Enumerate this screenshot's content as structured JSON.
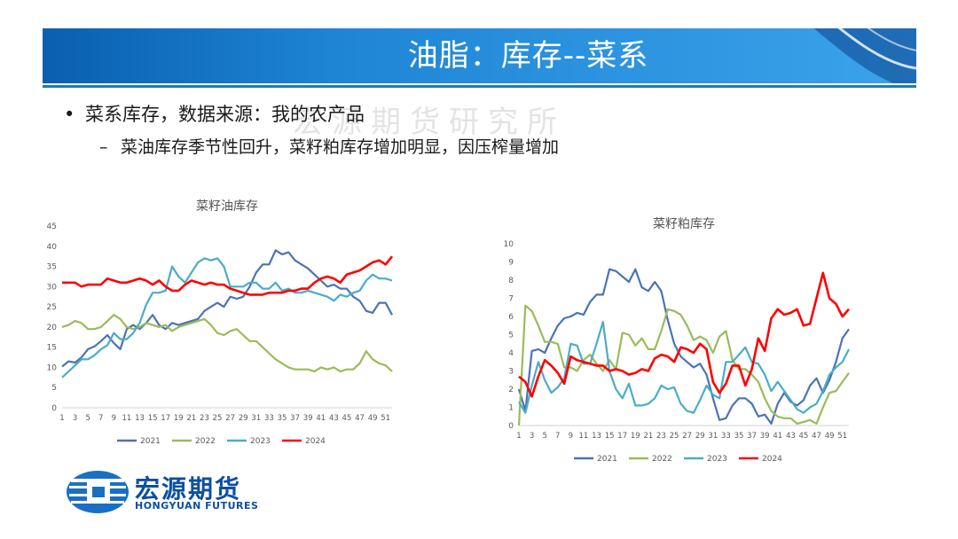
{
  "header": {
    "title": "油脂：库存--菜系"
  },
  "watermark": "宏源期货研究所",
  "bullets": {
    "level1": "菜系库存，数据来源：我的农产品",
    "level2": "菜油库存季节性回升，菜籽粕库存增加明显，因压榨量增加"
  },
  "logo": {
    "cn": "宏源期货",
    "en": "HONGYUAN FUTURES"
  },
  "colors": {
    "banner": "#1f86d6",
    "s2021": "#4a73b5",
    "s2022": "#9bbb59",
    "s2023": "#4bacc6",
    "s2024": "#ff0000"
  },
  "chart_data": [
    {
      "type": "line",
      "title": "菜籽油库存",
      "ylim": [
        0,
        45
      ],
      "yticks": [
        0,
        5,
        10,
        15,
        20,
        25,
        30,
        35,
        40,
        45
      ],
      "xlim": [
        1,
        52
      ],
      "xticks": [
        "1",
        "3",
        "5",
        "7",
        "9",
        "11",
        "13",
        "15",
        "17",
        "19",
        "21",
        "23",
        "25",
        "27",
        "29",
        "31",
        "33",
        "35",
        "37",
        "39",
        "41",
        "43",
        "45",
        "47",
        "49",
        "51"
      ],
      "legend": "bottom",
      "grid": false,
      "series": [
        {
          "name": "2021",
          "color": "#4a73b5",
          "values": [
            10.2,
            11.5,
            11.2,
            12.5,
            14.5,
            15.2,
            16.5,
            18.0,
            16.0,
            14.5,
            19.5,
            20.5,
            19.5,
            21.0,
            23.0,
            20.5,
            19.5,
            21.0,
            20.5,
            21.0,
            21.5,
            22.0,
            24.0,
            25.0,
            26.0,
            25.0,
            27.5,
            27.0,
            27.5,
            30.0,
            33.5,
            35.5,
            35.5,
            39.0,
            38.0,
            38.5,
            36.5,
            35.5,
            34.5,
            33.0,
            31.5,
            30.0,
            30.5,
            29.5,
            29.5,
            27.5,
            26.5,
            24.0,
            23.5,
            26.0,
            26.0,
            23.0
          ]
        },
        {
          "name": "2022",
          "color": "#9bbb59",
          "values": [
            20.0,
            20.5,
            21.5,
            21.0,
            19.5,
            19.5,
            20.0,
            21.5,
            23.0,
            22.0,
            20.0,
            19.5,
            20.0,
            21.0,
            20.5,
            20.0,
            20.5,
            19.0,
            20.0,
            20.5,
            21.0,
            21.5,
            22.0,
            20.5,
            18.5,
            18.0,
            19.0,
            19.5,
            18.0,
            16.5,
            16.5,
            15.0,
            13.5,
            12.0,
            11.0,
            10.0,
            9.5,
            9.5,
            9.5,
            9.0,
            10.0,
            9.5,
            10.0,
            9.0,
            9.5,
            9.5,
            11.0,
            14.0,
            12.0,
            11.0,
            10.5,
            9.0
          ]
        },
        {
          "name": "2023",
          "color": "#4bacc6",
          "values": [
            7.5,
            9.0,
            10.5,
            12.0,
            12.0,
            13.0,
            14.5,
            15.5,
            18.5,
            17.0,
            17.0,
            18.5,
            21.0,
            25.5,
            28.5,
            28.5,
            29.0,
            35.0,
            32.5,
            31.0,
            33.5,
            36.0,
            37.0,
            36.5,
            37.0,
            35.0,
            30.0,
            30.0,
            30.0,
            31.0,
            31.0,
            29.5,
            29.5,
            31.0,
            29.0,
            29.5,
            28.5,
            28.5,
            29.0,
            28.5,
            28.0,
            27.5,
            26.5,
            28.0,
            27.5,
            28.5,
            29.0,
            31.5,
            33.0,
            32.0,
            32.0,
            31.5
          ]
        },
        {
          "name": "2024",
          "color": "#ff0000",
          "values": [
            31.0,
            31.0,
            31.0,
            30.0,
            30.5,
            30.5,
            30.5,
            32.0,
            31.5,
            31.0,
            31.0,
            31.5,
            32.0,
            31.5,
            30.5,
            31.5,
            30.0,
            29.0,
            29.0,
            30.5,
            31.5,
            31.0,
            30.5,
            31.0,
            30.5,
            30.5,
            29.5,
            29.0,
            28.5,
            28.0,
            28.0,
            28.0,
            28.5,
            28.5,
            28.5,
            29.0,
            29.0,
            29.5,
            29.5,
            31.0,
            32.0,
            32.5,
            32.0,
            31.0,
            33.0,
            33.5,
            34.0,
            35.0,
            36.0,
            36.5,
            35.5,
            37.5
          ]
        }
      ]
    },
    {
      "type": "line",
      "title": "菜籽粕库存",
      "ylim": [
        0,
        10
      ],
      "yticks": [
        0,
        1,
        2,
        3,
        4,
        5,
        6,
        7,
        8,
        9,
        10
      ],
      "xlim": [
        1,
        52
      ],
      "xticks": [
        "1",
        "3",
        "5",
        "7",
        "9",
        "11",
        "13",
        "15",
        "17",
        "19",
        "21",
        "23",
        "25",
        "27",
        "29",
        "31",
        "33",
        "35",
        "37",
        "39",
        "41",
        "43",
        "45",
        "47",
        "49",
        "51"
      ],
      "legend": "bottom",
      "grid": false,
      "series": [
        {
          "name": "2021",
          "color": "#4a73b5",
          "values": [
            2.0,
            0.8,
            4.1,
            4.2,
            4.0,
            4.8,
            5.5,
            5.9,
            6.0,
            6.2,
            6.1,
            6.8,
            7.2,
            7.2,
            8.6,
            8.5,
            8.2,
            7.9,
            8.6,
            7.6,
            7.4,
            7.9,
            7.4,
            5.8,
            4.5,
            3.8,
            3.5,
            3.2,
            3.4,
            2.8,
            1.5,
            0.3,
            0.4,
            1.1,
            1.5,
            1.5,
            1.2,
            0.5,
            0.6,
            0.1,
            1.2,
            1.8,
            1.3,
            1.1,
            1.4,
            2.2,
            2.6,
            1.8,
            2.5,
            3.5,
            4.8,
            5.3
          ]
        },
        {
          "name": "2022",
          "color": "#9bbb59",
          "values": [
            0.0,
            6.6,
            6.3,
            5.5,
            4.6,
            4.6,
            4.5,
            3.2,
            3.2,
            3.0,
            3.6,
            3.9,
            3.4,
            3.0,
            3.6,
            3.1,
            5.1,
            5.0,
            4.4,
            4.8,
            4.2,
            4.2,
            5.2,
            6.4,
            6.3,
            6.1,
            5.5,
            4.7,
            4.9,
            4.7,
            4.0,
            4.9,
            5.2,
            3.6,
            3.1,
            3.1,
            2.8,
            2.4,
            1.5,
            0.8,
            0.5,
            0.4,
            0.4,
            0.1,
            0.2,
            0.3,
            0.1,
            1.0,
            1.8,
            1.9,
            2.4,
            2.9
          ]
        },
        {
          "name": "2023",
          "color": "#4bacc6",
          "values": [
            1.3,
            0.7,
            2.2,
            3.5,
            2.5,
            1.8,
            2.1,
            2.6,
            4.5,
            4.4,
            3.4,
            3.4,
            4.5,
            5.7,
            3.0,
            2.0,
            1.5,
            2.3,
            1.1,
            1.1,
            1.2,
            1.5,
            2.2,
            2.0,
            2.1,
            1.2,
            0.8,
            0.7,
            1.4,
            2.2,
            1.7,
            1.5,
            3.5,
            3.5,
            3.9,
            4.3,
            3.5,
            3.4,
            2.8,
            1.9,
            2.4,
            1.9,
            1.4,
            0.9,
            0.7,
            1.0,
            1.2,
            1.9,
            2.8,
            3.2,
            3.5,
            4.2
          ]
        },
        {
          "name": "2024",
          "color": "#ff0000",
          "values": [
            2.7,
            2.4,
            1.6,
            2.7,
            3.6,
            3.3,
            2.9,
            2.3,
            3.8,
            3.6,
            3.5,
            3.4,
            3.3,
            3.3,
            3.0,
            3.1,
            3.0,
            2.8,
            2.9,
            3.1,
            3.0,
            3.7,
            3.9,
            3.8,
            3.5,
            4.3,
            4.2,
            4.0,
            4.5,
            4.2,
            2.4,
            1.8,
            2.3,
            3.3,
            3.3,
            2.2,
            3.1,
            4.8,
            4.1,
            5.9,
            6.4,
            6.1,
            6.2,
            6.4,
            5.5,
            5.6,
            7.0,
            8.4,
            7.0,
            6.7,
            6.0,
            6.4
          ]
        }
      ]
    }
  ]
}
